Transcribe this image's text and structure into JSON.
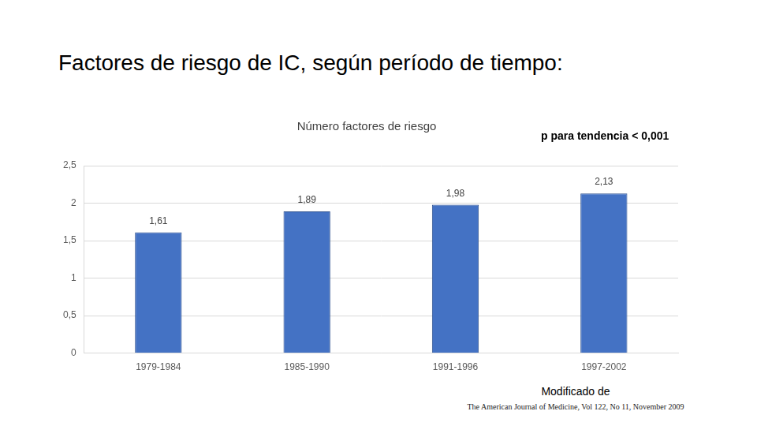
{
  "title": "Factores de riesgo de IC, según período de tiempo:",
  "chart_data": {
    "type": "bar",
    "title": "Número factores de riesgo",
    "annotations": [
      "p para tendencia < 0,001"
    ],
    "categories": [
      "1979-1984",
      "1985-1990",
      "1991-1996",
      "1997-2002"
    ],
    "values": [
      1.61,
      1.89,
      1.98,
      2.13
    ],
    "value_labels": [
      "1,61",
      "1,89",
      "1,98",
      "2,13"
    ],
    "data_labels": true,
    "color": "#4472c4",
    "ylim": [
      0,
      2.5
    ],
    "yticks": [
      0,
      {
        "value": 0.5,
        "label": "0,5"
      },
      1,
      {
        "value": 1.5,
        "label": "1,5"
      },
      2,
      {
        "value": 2.5,
        "label": "2,5"
      }
    ],
    "grid": true
  },
  "source": {
    "note": "Modificado de",
    "citation": "The American Journal of Medicine, Vol 122, No 11, November 2009"
  }
}
